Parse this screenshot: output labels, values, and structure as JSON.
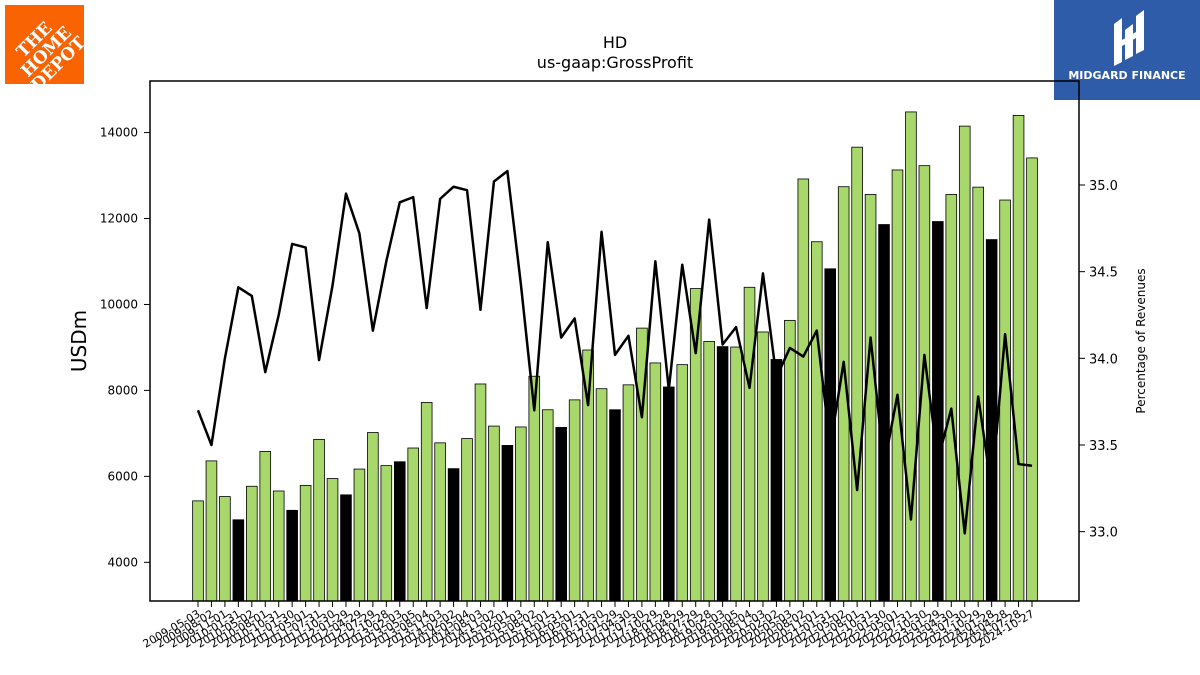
{
  "logos": {
    "left": {
      "name": "The Home Depot",
      "lines": [
        "THE",
        "HOME",
        "DEPOT"
      ],
      "color": "#f96302"
    },
    "right": {
      "name": "MIDGARD FINANCE",
      "color": "#2f5ca8"
    }
  },
  "chart_data": {
    "type": "bar",
    "title": "HD",
    "subtitle": "us-gaap:GrossProfit",
    "ylabel": "USDm",
    "y2label": "Percentage of Revenues",
    "ylim": [
      3100,
      15200
    ],
    "y2lim": [
      32.6,
      35.6
    ],
    "yticks": [
      4000,
      6000,
      8000,
      10000,
      12000,
      14000
    ],
    "y2ticks": [
      33.0,
      33.5,
      34.0,
      34.5,
      35.0
    ],
    "y2tick_labels": [
      "33.0",
      "33.5",
      "34.0",
      "34.5",
      "35.0"
    ],
    "x_tick_labels": [
      "2009-05-03",
      "2009-08-02",
      "2009-11-01",
      "2010-01-31",
      "2010-05-02",
      "2010-08-01",
      "2010-10-31",
      "2011-01-30",
      "2011-05-01",
      "2011-07-31",
      "2011-10-30",
      "2012-01-29",
      "2012-04-29",
      "2012-07-29",
      "2012-10-28",
      "2013-02-03",
      "2013-05-05",
      "2013-08-04",
      "2013-11-03",
      "2014-02-02",
      "2014-05-04",
      "2014-08-03",
      "2014-11-02",
      "2015-02-01",
      "2015-05-03",
      "2015-08-02",
      "2015-11-01",
      "2016-01-31",
      "2016-05-01",
      "2016-07-31",
      "2016-10-30",
      "2017-01-29",
      "2017-04-30",
      "2017-07-30",
      "2017-10-29",
      "2018-01-28",
      "2018-04-29",
      "2018-07-29",
      "2018-10-28",
      "2019-02-03",
      "2019-05-05",
      "2019-08-04",
      "2019-11-03",
      "2020-02-02",
      "2020-05-03",
      "2020-08-02",
      "2020-11-01",
      "2021-01-31",
      "2021-05-02",
      "2021-08-01",
      "2021-10-31",
      "2022-01-30",
      "2022-05-01",
      "2022-07-31",
      "2022-10-30",
      "2023-01-29",
      "2023-04-30",
      "2023-07-30",
      "2023-10-29",
      "2024-01-28",
      "2024-04-28",
      "2024-07-28",
      "2024-10-27"
    ],
    "series": [
      {
        "name": "GrossProfit",
        "axis": "left",
        "values": [
          5430,
          6360,
          5530,
          4990,
          5770,
          6580,
          5660,
          5210,
          5790,
          6860,
          5950,
          5570,
          6170,
          7020,
          6250,
          6340,
          6660,
          7720,
          6780,
          6180,
          6880,
          8150,
          7170,
          6720,
          7150,
          8330,
          7550,
          7140,
          7780,
          8940,
          8040,
          7550,
          8130,
          9450,
          8640,
          8080,
          8600,
          10370,
          9140,
          9020,
          9010,
          10400,
          9360,
          8720,
          9630,
          12920,
          11460,
          10830,
          12740,
          13660,
          12560,
          11860,
          13130,
          14480,
          13230,
          11930,
          12560,
          14150,
          12730,
          11510,
          12430,
          14400,
          13410
        ],
        "bar_type": [
          "q",
          "q",
          "q",
          "a",
          "q",
          "q",
          "q",
          "a",
          "q",
          "q",
          "q",
          "a",
          "q",
          "q",
          "q",
          "a",
          "q",
          "q",
          "q",
          "a",
          "q",
          "q",
          "q",
          "a",
          "q",
          "q",
          "q",
          "a",
          "q",
          "q",
          "q",
          "a",
          "q",
          "q",
          "q",
          "a",
          "q",
          "q",
          "q",
          "a",
          "q",
          "q",
          "q",
          "a",
          "q",
          "q",
          "q",
          "a",
          "q",
          "q",
          "q",
          "a",
          "q",
          "q",
          "q",
          "a",
          "q",
          "q",
          "q",
          "a",
          "q",
          "q",
          "q"
        ]
      },
      {
        "name": "Percentage of Revenues",
        "axis": "right",
        "type": "line",
        "values": [
          33.7,
          33.5,
          34.0,
          34.41,
          34.36,
          33.92,
          34.25,
          34.66,
          34.64,
          33.99,
          34.42,
          34.95,
          34.72,
          34.16,
          34.56,
          34.9,
          34.93,
          34.29,
          34.92,
          34.99,
          34.97,
          34.28,
          35.02,
          35.08,
          34.43,
          33.7,
          34.67,
          34.12,
          34.23,
          33.73,
          34.73,
          34.02,
          34.13,
          33.66,
          34.56,
          33.82,
          34.54,
          34.03,
          34.8,
          34.08,
          34.18,
          33.83,
          34.49,
          33.89,
          34.06,
          34.01,
          34.16,
          33.49,
          33.98,
          33.24,
          34.12,
          33.38,
          33.79,
          33.07,
          34.02,
          33.41,
          33.71,
          32.99,
          33.78,
          33.24,
          34.14,
          33.39,
          33.38
        ]
      }
    ],
    "colors": {
      "quarter_bar": "#a8d86b",
      "annual_bar": "#000000",
      "bar_edge": "#000000",
      "line": "#000000"
    },
    "grid": false,
    "legend": "none"
  }
}
